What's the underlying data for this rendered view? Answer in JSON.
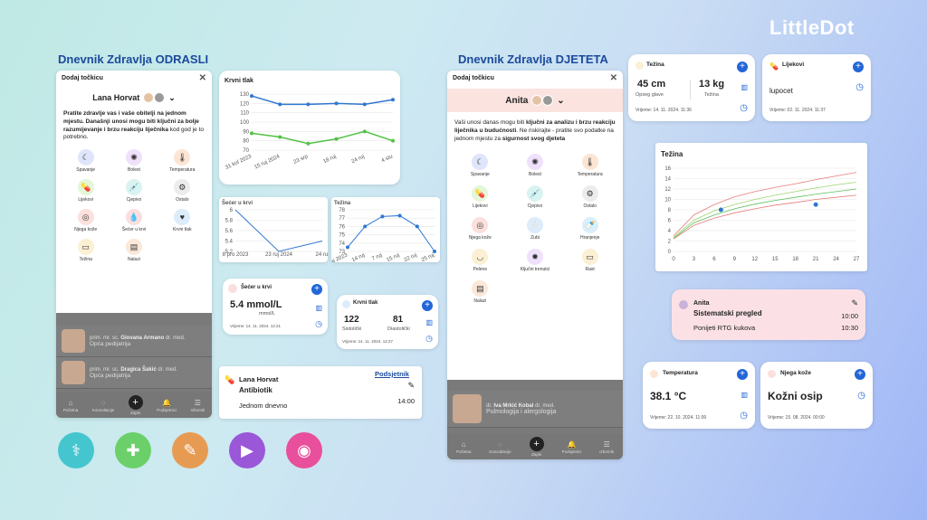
{
  "brand": {
    "logo": "LittleDot"
  },
  "sections": {
    "adult_title": "Dnevnik Zdravlja ODRASLI",
    "child_title": "Dnevnik Zdravlja DJETETA"
  },
  "adult_phone": {
    "header": "Dodaj točkicu",
    "user": "Lana Horvat",
    "intro_a": "Pratite zdravlje vas i vaše obitelji na jednom mjestu. Današnji ",
    "intro_b": "unosi mogu biti ključni za bolje razumijevanje i brzu reakciju liječnika",
    "intro_c": " kod god je to potrebno.",
    "items": [
      {
        "label": "Spavanje",
        "icon": "☾",
        "color": "#dfe6fb"
      },
      {
        "label": "Bolest",
        "icon": "✺",
        "color": "#efe1fb"
      },
      {
        "label": "Temperatura",
        "icon": "🌡",
        "color": "#fde5d4"
      },
      {
        "label": "Lijekovi",
        "icon": "💊",
        "color": "#e3f6d8"
      },
      {
        "label": "Cjepivo",
        "icon": "💉",
        "color": "#d9f3f0"
      },
      {
        "label": "Ostalo",
        "icon": "⚙",
        "color": "#ececec"
      },
      {
        "label": "Njega kože",
        "icon": "◎",
        "color": "#fbe0dc"
      },
      {
        "label": "Šećer u krvi",
        "icon": "💧",
        "color": "#fbdede"
      },
      {
        "label": "Krvni tlak",
        "icon": "♥",
        "color": "#dcecfb"
      },
      {
        "label": "Težina",
        "icon": "▭",
        "color": "#fbf0d4"
      },
      {
        "label": "Nalazi",
        "icon": "▤",
        "color": "#fbe8d8"
      }
    ],
    "doctors": [
      {
        "title": "prim. mr. sc.",
        "name": "Giovana Armano",
        "suffix": "dr. med.",
        "spec": "Opća pedijatrija"
      },
      {
        "title": "prim. mr. sc.",
        "name": "Dragica Šakić",
        "suffix": "dr. med.",
        "spec": "Opća pedijatrija"
      }
    ],
    "nav": [
      "Početna",
      "Konzultacije",
      "Zapis",
      "Podsjetnici",
      "Izbornik"
    ]
  },
  "bp_chart": {
    "title": "Krvni tlak"
  },
  "chart_data": [
    {
      "type": "line",
      "title": "Krvni tlak",
      "x": [
        "31 kol 2023",
        "15 ruj 2024",
        "23 srp",
        "18 ruj",
        "24 ruj",
        "4 stu"
      ],
      "series": [
        {
          "values": [
            128,
            119,
            119,
            120,
            119,
            124
          ],
          "color": "#2f77d0"
        },
        {
          "values": [
            88,
            84,
            77,
            82,
            90,
            80
          ],
          "color": "#52c244"
        }
      ],
      "ylim": [
        70,
        130
      ],
      "yticks": [
        70,
        80,
        90,
        100,
        110,
        120,
        130
      ]
    },
    {
      "type": "line",
      "title": "Šećer u krvi",
      "x": [
        "8 pro 2023",
        "23 ruj 2024",
        "24 ruj"
      ],
      "series": [
        {
          "values": [
            6.0,
            5.2,
            5.4
          ],
          "color": "#2f77d0"
        }
      ],
      "ylim": [
        5.2,
        6.0
      ],
      "yticks": [
        5.2,
        5.4,
        5.6,
        5.8,
        6.0
      ]
    },
    {
      "type": "line",
      "title": "Težina",
      "x": [
        "1 ruj 2023",
        "14 ruj",
        "7 ruj",
        "15 ruj",
        "22 ruj",
        "25 ruj"
      ],
      "series": [
        {
          "values": [
            73.5,
            76,
            77.2,
            77.3,
            76,
            73
          ],
          "color": "#2f77d0"
        }
      ],
      "ylim": [
        73,
        78
      ],
      "yticks": [
        73,
        74,
        75,
        76,
        77,
        78
      ]
    },
    {
      "type": "line",
      "title": "Težina",
      "x": [
        0,
        3,
        6,
        9,
        12,
        15,
        18,
        21,
        24,
        27
      ],
      "series": [
        {
          "values": [
            3,
            7,
            9,
            10.5,
            11.5,
            12.3,
            13,
            13.8,
            14.5,
            15.2
          ],
          "color": "#e87a7a"
        },
        {
          "values": [
            2.7,
            6,
            7.8,
            9,
            10,
            10.8,
            11.5,
            12.2,
            12.8,
            13.3
          ],
          "color": "#9ed46a"
        },
        {
          "values": [
            2.5,
            5.5,
            7,
            8.2,
            9.1,
            9.8,
            10.4,
            11,
            11.5,
            12
          ],
          "color": "#5cbf5c"
        },
        {
          "values": [
            2.4,
            5,
            6.4,
            7.4,
            8.2,
            8.9,
            9.4,
            10,
            10.4,
            10.8
          ],
          "color": "#e87a7a"
        }
      ],
      "points": [
        {
          "x": 7,
          "y": 8
        },
        {
          "x": 21,
          "y": 9
        }
      ],
      "ylim": [
        0,
        16
      ],
      "yticks": [
        0,
        2,
        4,
        6,
        8,
        10,
        12,
        14,
        16
      ],
      "xticks": [
        0,
        3,
        6,
        9,
        12,
        15,
        18,
        21,
        24,
        27
      ]
    }
  ],
  "sugar_card": {
    "title": "Šećer u krvi",
    "value": "5.4 mmol/L",
    "unit": "mmol/L",
    "time": "Vrijeme: 14. 11. 2024. 12:21"
  },
  "bp_card": {
    "title": "Krvni tlak",
    "sys": "122",
    "sys_lbl": "Sistolički",
    "dia": "81",
    "dia_lbl": "Diastolički",
    "time": "Vrijeme: 14. 11. 2024. 12:27"
  },
  "reminder": {
    "name": "Lana Horvat",
    "link": "Podsjetnik",
    "drug": "Antibiotik",
    "freq": "Jednom dnevno",
    "time": "14:00"
  },
  "child_phone": {
    "header": "Dodaj točkicu",
    "user": "Anita",
    "intro_a": "Vaši unosi danas mogu biti ",
    "intro_b": "ključni za analizu i brzu reakciju liječnika u budućnosti",
    "intro_c": ". Ne riskirajte - pratite svo podatke na jednom mjestu za ",
    "intro_d": "sigurnost svog djeteta",
    "items": [
      {
        "label": "Spavanje",
        "icon": "☾",
        "color": "#dfe6fb"
      },
      {
        "label": "Bolest",
        "icon": "✺",
        "color": "#efe1fb"
      },
      {
        "label": "Temperatura",
        "icon": "🌡",
        "color": "#fde5d4"
      },
      {
        "label": "Lijekovi",
        "icon": "💊",
        "color": "#e3f6d8"
      },
      {
        "label": "Cjepivo",
        "icon": "💉",
        "color": "#d9f3f0"
      },
      {
        "label": "Ostalo",
        "icon": "⚙",
        "color": "#ececec"
      },
      {
        "label": "Njega kože",
        "icon": "◎",
        "color": "#fbe0dc"
      },
      {
        "label": "Zubi",
        "icon": "🦷",
        "color": "#dcecfb"
      },
      {
        "label": "Hranjenje",
        "icon": "🍼",
        "color": "#d9f0fb"
      },
      {
        "label": "Pelene",
        "icon": "◡",
        "color": "#fbf0d4"
      },
      {
        "label": "Ključni trenutci",
        "icon": "✹",
        "color": "#efe1fb"
      },
      {
        "label": "Rast",
        "icon": "▭",
        "color": "#fbf0d4"
      },
      {
        "label": "Nalazi",
        "icon": "▤",
        "color": "#fbe8d8"
      }
    ],
    "doctor": {
      "title": "dr.",
      "name": "Iva Mrkić Kobal",
      "suffix": "dr. med.",
      "spec": "Pulmologija i alergologija"
    },
    "nav": [
      "Početna",
      "Konzultacije",
      "Zapis",
      "Podsjetnici",
      "Izbornik"
    ]
  },
  "weight_card": {
    "title": "Težina",
    "head": "45 cm",
    "head_lbl": "Opseg glave",
    "weight": "13 kg",
    "weight_lbl": "Težina",
    "time": "Vrijeme: 14. 11. 2024. 11:36"
  },
  "meds_card": {
    "title": "Lijekovi",
    "value": "lupocet",
    "time": "Vrijeme: 02. 11. 2024. 11:37"
  },
  "growth_chart": {
    "title": "Težina"
  },
  "appointment": {
    "name": "Anita",
    "title": "Sistematski pregled",
    "note": "Ponijeti RTG kukova",
    "t1": "10:00",
    "t2": "10:30"
  },
  "temp_card": {
    "title": "Temperatura",
    "value": "38.1 °C",
    "time": "Vrijeme: 22. 10. 2024. 11:00"
  },
  "skin_card": {
    "title": "Njega kože",
    "value": "Kožni osip",
    "time": "Vrijeme: 15. 08. 2024. 00:00"
  },
  "bottom_icons": [
    {
      "name": "doctor-icon",
      "glyph": "⚕",
      "color": "#45c6cf"
    },
    {
      "name": "bandage-icon",
      "glyph": "✚",
      "color": "#6bd06a"
    },
    {
      "name": "chat-icon",
      "glyph": "✎",
      "color": "#e79b52"
    },
    {
      "name": "play-icon",
      "glyph": "▶",
      "color": "#9a57d8"
    },
    {
      "name": "ear-icon",
      "glyph": "◉",
      "color": "#e84f9c"
    }
  ]
}
